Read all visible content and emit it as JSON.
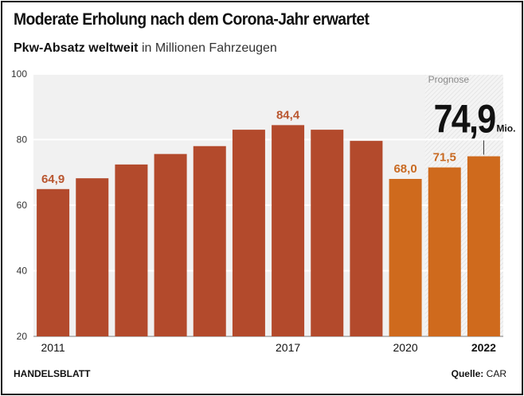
{
  "header": {
    "title": "Moderate Erholung nach dem Corona-Jahr erwartet",
    "subtitle_bold": "Pkw-Absatz weltweit",
    "subtitle_rest": "in Millionen Fahrzeugen"
  },
  "footer": {
    "publisher": "HANDELSBLATT",
    "source_label": "Quelle:",
    "source": "CAR"
  },
  "colors": {
    "actual_bar": "#b34a2c",
    "forecast_bar": "#cf6a1d",
    "label_actual": "#b9562f",
    "label_forecast": "#c96a22",
    "plot_bg": "#f1f1f1",
    "gridline": "#ffffff"
  },
  "chart_data": {
    "type": "bar",
    "title": "Moderate Erholung nach dem Corona-Jahr erwartet",
    "subtitle": "Pkw-Absatz weltweit in Millionen Fahrzeugen",
    "categories": [
      "2011",
      "2012",
      "2013",
      "2014",
      "2015",
      "2016",
      "2017",
      "2018",
      "2019",
      "2020",
      "2021",
      "2022"
    ],
    "values": [
      64.9,
      68.2,
      72.4,
      75.6,
      78.0,
      83.0,
      84.4,
      83.0,
      79.6,
      68.0,
      71.5,
      74.9
    ],
    "forecast_from_index": 10,
    "forecast_label": "Prognose",
    "highlight": {
      "index": 11,
      "value_text": "74,9",
      "unit": "Mio."
    },
    "data_labels": [
      {
        "index": 0,
        "text": "64,9"
      },
      {
        "index": 6,
        "text": "84,4"
      },
      {
        "index": 9,
        "text": "68,0"
      },
      {
        "index": 10,
        "text": "71,5"
      }
    ],
    "x_tick_labels": [
      {
        "index": 0,
        "text": "2011",
        "bold": false
      },
      {
        "index": 6,
        "text": "2017",
        "bold": false
      },
      {
        "index": 9,
        "text": "2020",
        "bold": false
      },
      {
        "index": 11,
        "text": "2022",
        "bold": true
      }
    ],
    "yticks": [
      20,
      40,
      60,
      80,
      100
    ],
    "ylim": [
      20,
      100
    ],
    "xlabel": "",
    "ylabel": "",
    "grid": true,
    "legend": "none"
  }
}
